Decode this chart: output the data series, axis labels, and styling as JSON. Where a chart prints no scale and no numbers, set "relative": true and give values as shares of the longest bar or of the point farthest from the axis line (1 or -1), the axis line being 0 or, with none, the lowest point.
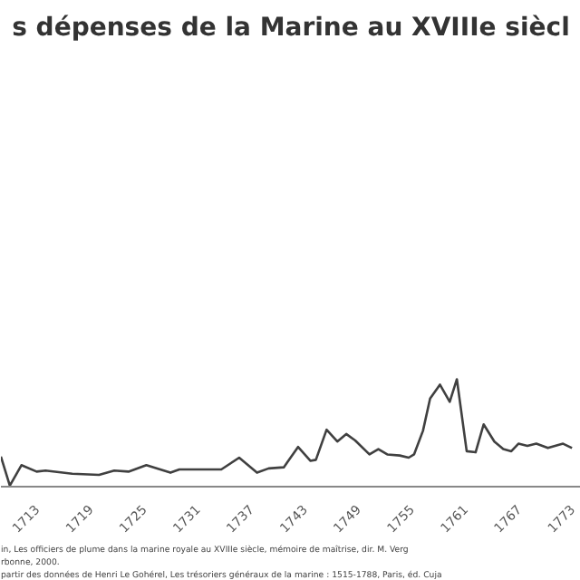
{
  "chart_data": {
    "type": "line",
    "title": "s dépenses de la Marine au XVIIIe siècl",
    "relative": true,
    "color": "#404040",
    "x": [
      1709,
      1710,
      1711.3,
      1713,
      1714,
      1717,
      1720,
      1721.7,
      1723.3,
      1725.3,
      1728,
      1729,
      1733.7,
      1735.7,
      1737.7,
      1739,
      1740.7,
      1742.3,
      1743.7,
      1744.3,
      1745.5,
      1746.7,
      1747.7,
      1748.7,
      1750.3,
      1751.3,
      1752.3,
      1753.7,
      1754.7,
      1755.3,
      1756.3,
      1757.1,
      1758.2,
      1759.3,
      1760.1,
      1761.2,
      1762.2,
      1763.1,
      1764.3,
      1765.3,
      1766.2,
      1767,
      1768,
      1769,
      1770.3,
      1772,
      1773
    ],
    "values": [
      0.28,
      0.01,
      0.2,
      0.14,
      0.15,
      0.12,
      0.11,
      0.15,
      0.14,
      0.2,
      0.13,
      0.16,
      0.16,
      0.27,
      0.13,
      0.17,
      0.18,
      0.37,
      0.24,
      0.25,
      0.53,
      0.42,
      0.49,
      0.43,
      0.3,
      0.35,
      0.3,
      0.29,
      0.27,
      0.3,
      0.52,
      0.82,
      0.95,
      0.79,
      1.0,
      0.33,
      0.32,
      0.58,
      0.42,
      0.35,
      0.33,
      0.4,
      0.38,
      0.4,
      0.36,
      0.4,
      0.36
    ],
    "xlim": [
      1709,
      1774
    ],
    "xticks": [
      1713,
      1719,
      1725,
      1731,
      1737,
      1743,
      1749,
      1755,
      1761,
      1767,
      1773
    ],
    "annotations": [
      "in, Les officiers de plume dans la marine royale au XVIIIe siècle, mémoire de maîtrise, dir. M. Verg",
      "rbonne, 2000.",
      "partir des données de Henri Le Gohérel, Les trésoriers généraux de la marine : 1515-1788, Paris, éd. Cuja"
    ]
  }
}
